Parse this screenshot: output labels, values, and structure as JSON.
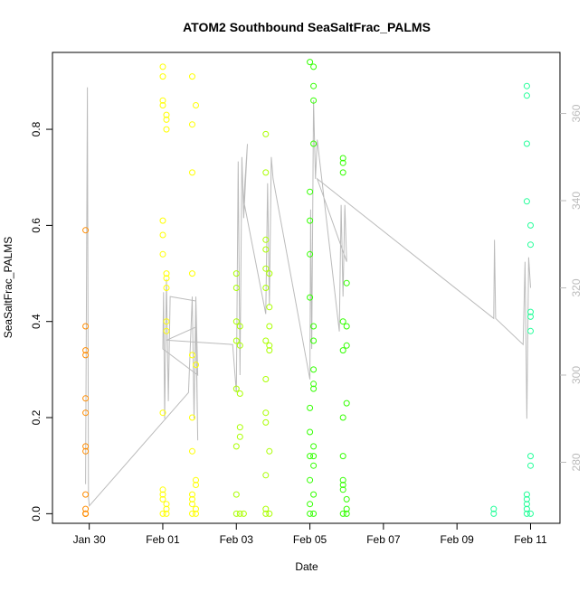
{
  "chart_data": {
    "type": "scatter",
    "title": "ATOM2 Southbound SeaSaltFrac_PALMS",
    "xlabel": "Date",
    "ylabel": "SeaSaltFrac_PALMS",
    "x_ticks": [
      "Jan 30",
      "Feb 01",
      "Feb 03",
      "Feb 05",
      "Feb 07",
      "Feb 09",
      "Feb 11"
    ],
    "y_ticks": [
      "0.0",
      "0.2",
      "0.4",
      "0.6",
      "0.8"
    ],
    "y2_ticks": [
      "280",
      "300",
      "320",
      "340",
      "360"
    ],
    "xlim": [
      "Jan 29.0",
      "Feb 11.8"
    ],
    "ylim": [
      -0.02,
      0.96
    ],
    "y2lim": [
      266,
      374
    ],
    "grid": false,
    "legend": "none",
    "series": [
      {
        "color": "#FF8C00",
        "points": [
          [
            "Jan 29.9",
            0.59
          ],
          [
            "Jan 29.9",
            0.39
          ],
          [
            "Jan 29.9",
            0.34
          ],
          [
            "Jan 29.9",
            0.33
          ],
          [
            "Jan 29.9",
            0.24
          ],
          [
            "Jan 29.9",
            0.21
          ],
          [
            "Jan 29.9",
            0.14
          ],
          [
            "Jan 29.9",
            0.13
          ],
          [
            "Jan 29.9",
            0.04
          ],
          [
            "Jan 29.9",
            0.01
          ],
          [
            "Jan 29.9",
            0.0
          ],
          [
            "Jan 29.9",
            0.0
          ],
          [
            "Jan 29.9",
            0.0
          ]
        ]
      },
      {
        "color": "#FFFF00",
        "points": [
          [
            "Feb 01.0",
            0.93
          ],
          [
            "Feb 01.0",
            0.91
          ],
          [
            "Feb 01.0",
            0.86
          ],
          [
            "Feb 01.0",
            0.85
          ],
          [
            "Feb 01.1",
            0.83
          ],
          [
            "Feb 01.1",
            0.82
          ],
          [
            "Feb 01.1",
            0.8
          ],
          [
            "Feb 01.0",
            0.61
          ],
          [
            "Feb 01.0",
            0.58
          ],
          [
            "Feb 01.0",
            0.54
          ],
          [
            "Feb 01.1",
            0.5
          ],
          [
            "Feb 01.1",
            0.49
          ],
          [
            "Feb 01.1",
            0.47
          ],
          [
            "Feb 01.1",
            0.4
          ],
          [
            "Feb 01.1",
            0.38
          ],
          [
            "Feb 01.0",
            0.21
          ],
          [
            "Feb 01.0",
            0.05
          ],
          [
            "Feb 01.0",
            0.04
          ],
          [
            "Feb 01.0",
            0.03
          ],
          [
            "Feb 01.1",
            0.02
          ],
          [
            "Feb 01.1",
            0.01
          ],
          [
            "Feb 01.1",
            0.0
          ],
          [
            "Feb 01.0",
            0.0
          ],
          [
            "Feb 01.8",
            0.91
          ],
          [
            "Feb 01.9",
            0.85
          ],
          [
            "Feb 01.8",
            0.81
          ],
          [
            "Feb 01.8",
            0.71
          ],
          [
            "Feb 01.8",
            0.5
          ],
          [
            "Feb 01.8",
            0.33
          ],
          [
            "Feb 01.9",
            0.31
          ],
          [
            "Feb 01.8",
            0.2
          ],
          [
            "Feb 01.8",
            0.13
          ],
          [
            "Feb 01.9",
            0.07
          ],
          [
            "Feb 01.9",
            0.06
          ],
          [
            "Feb 01.8",
            0.04
          ],
          [
            "Feb 01.8",
            0.03
          ],
          [
            "Feb 01.8",
            0.02
          ],
          [
            "Feb 01.9",
            0.01
          ],
          [
            "Feb 01.9",
            0.0
          ],
          [
            "Feb 01.8",
            0.0
          ]
        ]
      },
      {
        "color": "#AAFF00",
        "points": [
          [
            "Feb 03.0",
            0.5
          ],
          [
            "Feb 03.0",
            0.47
          ],
          [
            "Feb 03.0",
            0.4
          ],
          [
            "Feb 03.1",
            0.39
          ],
          [
            "Feb 03.0",
            0.36
          ],
          [
            "Feb 03.1",
            0.35
          ],
          [
            "Feb 03.0",
            0.26
          ],
          [
            "Feb 03.1",
            0.25
          ],
          [
            "Feb 03.1",
            0.18
          ],
          [
            "Feb 03.1",
            0.16
          ],
          [
            "Feb 03.0",
            0.14
          ],
          [
            "Feb 03.0",
            0.04
          ],
          [
            "Feb 03.0",
            0.0
          ],
          [
            "Feb 03.1",
            0.0
          ],
          [
            "Feb 03.2",
            0.0
          ],
          [
            "Feb 03.8",
            0.79
          ],
          [
            "Feb 03.8",
            0.71
          ],
          [
            "Feb 03.8",
            0.57
          ],
          [
            "Feb 03.8",
            0.55
          ],
          [
            "Feb 03.8",
            0.51
          ],
          [
            "Feb 03.9",
            0.5
          ],
          [
            "Feb 03.8",
            0.47
          ],
          [
            "Feb 03.9",
            0.43
          ],
          [
            "Feb 03.9",
            0.39
          ],
          [
            "Feb 03.9",
            0.35
          ],
          [
            "Feb 03.8",
            0.36
          ],
          [
            "Feb 03.9",
            0.34
          ],
          [
            "Feb 03.8",
            0.28
          ],
          [
            "Feb 03.8",
            0.21
          ],
          [
            "Feb 03.8",
            0.19
          ],
          [
            "Feb 03.9",
            0.13
          ],
          [
            "Feb 03.8",
            0.08
          ],
          [
            "Feb 03.8",
            0.01
          ],
          [
            "Feb 03.9",
            0.0
          ],
          [
            "Feb 03.8",
            0.0
          ]
        ]
      },
      {
        "color": "#33FF00",
        "points": [
          [
            "Feb 05.0",
            0.94
          ],
          [
            "Feb 05.1",
            0.93
          ],
          [
            "Feb 05.1",
            0.89
          ],
          [
            "Feb 05.1",
            0.86
          ],
          [
            "Feb 05.1",
            0.77
          ],
          [
            "Feb 05.0",
            0.67
          ],
          [
            "Feb 05.0",
            0.61
          ],
          [
            "Feb 05.0",
            0.54
          ],
          [
            "Feb 05.0",
            0.45
          ],
          [
            "Feb 05.1",
            0.39
          ],
          [
            "Feb 05.1",
            0.36
          ],
          [
            "Feb 05.1",
            0.3
          ],
          [
            "Feb 05.1",
            0.27
          ],
          [
            "Feb 05.1",
            0.26
          ],
          [
            "Feb 05.0",
            0.22
          ],
          [
            "Feb 05.0",
            0.17
          ],
          [
            "Feb 05.1",
            0.14
          ],
          [
            "Feb 05.1",
            0.12
          ],
          [
            "Feb 05.0",
            0.12
          ],
          [
            "Feb 05.1",
            0.1
          ],
          [
            "Feb 05.0",
            0.07
          ],
          [
            "Feb 05.1",
            0.04
          ],
          [
            "Feb 05.0",
            0.02
          ],
          [
            "Feb 05.0",
            0.0
          ],
          [
            "Feb 05.1",
            0.0
          ],
          [
            "Feb 05.9",
            0.74
          ],
          [
            "Feb 05.9",
            0.73
          ],
          [
            "Feb 05.9",
            0.71
          ],
          [
            "Feb 06.0",
            0.48
          ],
          [
            "Feb 05.9",
            0.4
          ],
          [
            "Feb 06.0",
            0.39
          ],
          [
            "Feb 05.9",
            0.34
          ],
          [
            "Feb 06.0",
            0.35
          ],
          [
            "Feb 06.0",
            0.23
          ],
          [
            "Feb 05.9",
            0.2
          ],
          [
            "Feb 05.9",
            0.12
          ],
          [
            "Feb 05.9",
            0.07
          ],
          [
            "Feb 05.9",
            0.06
          ],
          [
            "Feb 05.9",
            0.05
          ],
          [
            "Feb 06.0",
            0.03
          ],
          [
            "Feb 06.0",
            0.01
          ],
          [
            "Feb 05.9",
            0.0
          ],
          [
            "Feb 06.0",
            0.0
          ]
        ]
      },
      {
        "color": "#22FF99",
        "points": [
          [
            "Feb 10.9",
            0.89
          ],
          [
            "Feb 10.9",
            0.87
          ],
          [
            "Feb 10.9",
            0.77
          ],
          [
            "Feb 10.9",
            0.65
          ],
          [
            "Feb 11.0",
            0.6
          ],
          [
            "Feb 11.0",
            0.56
          ],
          [
            "Feb 11.0",
            0.42
          ],
          [
            "Feb 11.0",
            0.41
          ],
          [
            "Feb 11.0",
            0.38
          ],
          [
            "Feb 11.0",
            0.12
          ],
          [
            "Feb 11.0",
            0.1
          ],
          [
            "Feb 10.9",
            0.04
          ],
          [
            "Feb 10.9",
            0.03
          ],
          [
            "Feb 10.9",
            0.02
          ],
          [
            "Feb 10.9",
            0.01
          ],
          [
            "Feb 11.0",
            0.0
          ],
          [
            "Feb 10.9",
            0.0
          ],
          [
            "Feb 10.0",
            0.01
          ],
          [
            "Feb 10.0",
            0.0
          ]
        ]
      }
    ],
    "line_series": {
      "color": "#BBBBBB",
      "points": [
        [
          "Jan 29.9",
          275
        ],
        [
          "Jan 29.95",
          366
        ],
        [
          "Jan 29.98",
          272
        ],
        [
          "Jan 30.0",
          270
        ],
        [
          "Feb 01.7",
          296
        ],
        [
          "Feb 01.8",
          318
        ],
        [
          "Feb 01.85",
          290
        ],
        [
          "Feb 01.9",
          318
        ],
        [
          "Feb 01.95",
          300
        ],
        [
          "Feb 01.0",
          306
        ],
        [
          "Feb 01.02",
          319
        ],
        [
          "Feb 01.05",
          290
        ],
        [
          "Feb 01.1",
          322
        ],
        [
          "Feb 01.15",
          294
        ],
        [
          "Feb 01.2",
          318
        ],
        [
          "Feb 01.9",
          317
        ],
        [
          "Feb 01.95",
          285
        ],
        [
          "Feb 01.9",
          311
        ],
        [
          "Feb 01.1",
          308
        ],
        [
          "Feb 02.9",
          307
        ],
        [
          "Feb 03.0",
          296
        ],
        [
          "Feb 03.05",
          349
        ],
        [
          "Feb 03.1",
          300
        ],
        [
          "Feb 03.15",
          350
        ],
        [
          "Feb 03.2",
          336
        ],
        [
          "Feb 03.3",
          353
        ],
        [
          "Feb 03.2",
          340
        ],
        [
          "Feb 03.8",
          314
        ],
        [
          "Feb 03.85",
          344
        ],
        [
          "Feb 03.9",
          316
        ],
        [
          "Feb 03.95",
          350
        ],
        [
          "Feb 04.0",
          345
        ],
        [
          "Feb 05.0",
          299
        ],
        [
          "Feb 05.02",
          338
        ],
        [
          "Feb 05.05",
          306
        ],
        [
          "Feb 05.1",
          363
        ],
        [
          "Feb 05.15",
          345
        ],
        [
          "Feb 05.2",
          354
        ],
        [
          "Feb 05.8",
          310
        ],
        [
          "Feb 05.85",
          339
        ],
        [
          "Feb 05.9",
          318
        ],
        [
          "Feb 05.95",
          339
        ],
        [
          "Feb 06.0",
          326
        ],
        [
          "Feb 05.2",
          345
        ],
        [
          "Feb 10.0",
          313
        ],
        [
          "Feb 10.02",
          331
        ],
        [
          "Feb 10.05",
          313
        ],
        [
          "Feb 10.8",
          307
        ],
        [
          "Feb 10.85",
          326
        ],
        [
          "Feb 10.9",
          290
        ],
        [
          "Feb 10.95",
          327
        ],
        [
          "Feb 11.0",
          320
        ]
      ]
    }
  }
}
